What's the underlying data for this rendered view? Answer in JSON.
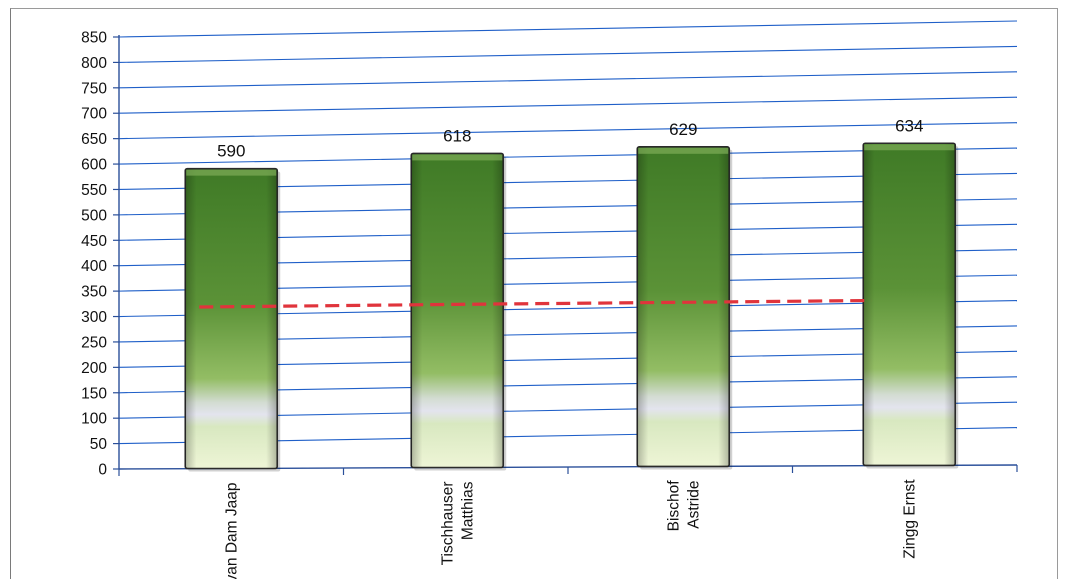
{
  "chart_data": {
    "type": "bar",
    "title": "",
    "xlabel": "",
    "ylabel": "",
    "categories": [
      [
        "van Dam Jaap"
      ],
      [
        "Tischhauser",
        "Matthias"
      ],
      [
        "Bischof",
        "Astride"
      ],
      [
        "Zingg Ernst"
      ]
    ],
    "values": [
      590,
      618,
      629,
      634
    ],
    "data_labels": [
      "590",
      "618",
      "629",
      "634"
    ],
    "reference_line": {
      "values": [
        318,
        321,
        323,
        325
      ],
      "style": "dashed",
      "color": "#e0343c"
    },
    "ylim": [
      0,
      850
    ],
    "yticks": [
      0,
      50,
      100,
      150,
      200,
      250,
      300,
      350,
      400,
      450,
      500,
      550,
      600,
      650,
      700,
      750,
      800,
      850
    ],
    "grid": true,
    "colors": {
      "bar_top": "#3e7a25",
      "bar_mid": "#6ea243",
      "bar_highlight": "#dfe3ea",
      "bar_bottom": "#eaf3cf",
      "gridline": "#1f5fc8",
      "axis": "#2a4f9a"
    }
  }
}
